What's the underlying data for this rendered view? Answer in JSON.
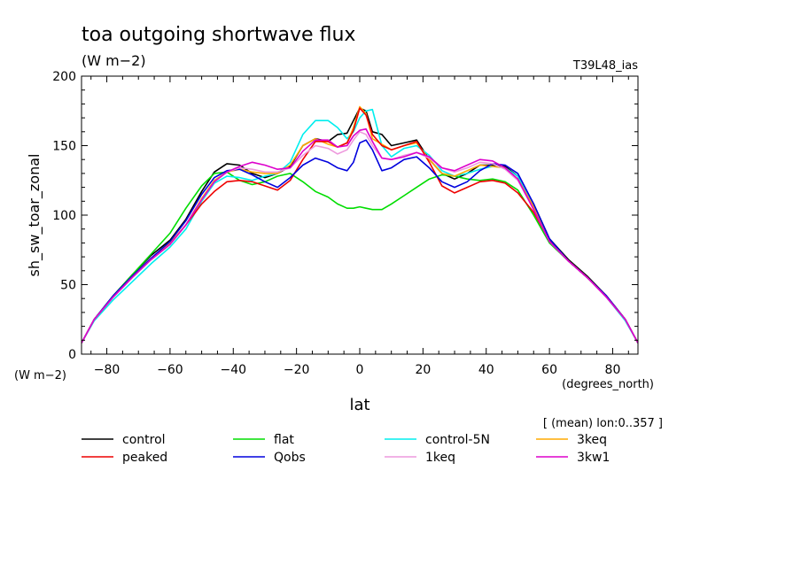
{
  "chart_data": {
    "type": "line",
    "title": "toa outgoing shortwave flux",
    "subtitle": "(W m−2)",
    "experiment_tag": "T39L48_ias",
    "ylabel": "sh_sw_toar_zonal",
    "yunit": "(W m−2)",
    "xlabel": "lat",
    "xunit": "(degrees_north)",
    "note": "[ (mean) lon:0..357 ]",
    "xlim": [
      -88,
      88
    ],
    "ylim": [
      0,
      200
    ],
    "xticks": [
      -80,
      -60,
      -40,
      -20,
      0,
      20,
      40,
      60,
      80
    ],
    "xtick_labels": [
      "−80",
      "−60",
      "−40",
      "−20",
      "0",
      "20",
      "40",
      "60",
      "80"
    ],
    "yticks": [
      0,
      50,
      100,
      150,
      200
    ],
    "ytick_labels": [
      "0",
      "50",
      "100",
      "150",
      "200"
    ],
    "grid": false,
    "legend_position": "bottom",
    "series": [
      {
        "name": "control",
        "color": "#000000",
        "x": [
          -88,
          -84,
          -78,
          -72,
          -66,
          -60,
          -55,
          -50,
          -46,
          -42,
          -38,
          -34,
          -30,
          -26,
          -22,
          -18,
          -14,
          -10,
          -7,
          -4,
          -2,
          0,
          2,
          4,
          7,
          10,
          14,
          18,
          22,
          26,
          30,
          34,
          38,
          42,
          46,
          50,
          55,
          60,
          66,
          72,
          78,
          84,
          88
        ],
        "y": [
          8,
          25,
          42,
          57,
          71,
          82,
          97,
          117,
          131,
          137,
          136,
          130,
          127,
          130,
          135,
          150,
          155,
          153,
          158,
          159,
          168,
          177,
          175,
          160,
          158,
          150,
          152,
          154,
          140,
          130,
          126,
          130,
          136,
          136,
          135,
          128,
          108,
          83,
          68,
          56,
          42,
          25,
          8
        ]
      },
      {
        "name": "flat",
        "color": "#00dd00",
        "x": [
          -88,
          -84,
          -78,
          -72,
          -66,
          -60,
          -55,
          -50,
          -46,
          -42,
          -38,
          -34,
          -30,
          -26,
          -22,
          -18,
          -14,
          -10,
          -7,
          -4,
          -2,
          0,
          2,
          4,
          7,
          10,
          14,
          18,
          22,
          26,
          30,
          34,
          38,
          42,
          46,
          50,
          55,
          60,
          66,
          72,
          78,
          84,
          88
        ],
        "y": [
          8,
          25,
          42,
          57,
          72,
          87,
          105,
          121,
          130,
          131,
          125,
          122,
          124,
          128,
          130,
          124,
          117,
          113,
          108,
          105,
          105,
          106,
          105,
          104,
          104,
          108,
          114,
          120,
          126,
          129,
          128,
          126,
          125,
          126,
          124,
          118,
          100,
          80,
          67,
          55,
          42,
          25,
          8
        ]
      },
      {
        "name": "control-5N",
        "color": "#00eeee",
        "x": [
          -88,
          -84,
          -78,
          -72,
          -66,
          -60,
          -55,
          -50,
          -46,
          -42,
          -38,
          -34,
          -30,
          -26,
          -22,
          -18,
          -14,
          -10,
          -7,
          -4,
          -2,
          0,
          2,
          4,
          7,
          10,
          14,
          18,
          22,
          26,
          30,
          34,
          38,
          42,
          46,
          50,
          55,
          60,
          66,
          72,
          78,
          84,
          88
        ],
        "y": [
          8,
          24,
          39,
          52,
          65,
          77,
          90,
          110,
          123,
          128,
          127,
          125,
          128,
          130,
          138,
          158,
          168,
          168,
          163,
          155,
          160,
          170,
          175,
          176,
          150,
          142,
          148,
          150,
          143,
          132,
          128,
          130,
          133,
          135,
          134,
          128,
          108,
          82,
          67,
          55,
          41,
          24,
          8
        ]
      },
      {
        "name": "3keq",
        "color": "#ffaa00",
        "x": [
          -88,
          -84,
          -78,
          -72,
          -66,
          -60,
          -55,
          -50,
          -46,
          -42,
          -38,
          -34,
          -30,
          -26,
          -22,
          -18,
          -14,
          -10,
          -7,
          -4,
          -2,
          0,
          2,
          4,
          7,
          10,
          14,
          18,
          22,
          26,
          30,
          34,
          38,
          42,
          46,
          50,
          55,
          60,
          66,
          72,
          78,
          84,
          88
        ],
        "y": [
          8,
          25,
          41,
          56,
          69,
          80,
          93,
          112,
          125,
          131,
          133,
          131,
          130,
          130,
          136,
          150,
          155,
          151,
          149,
          152,
          163,
          178,
          173,
          155,
          151,
          147,
          150,
          152,
          140,
          130,
          128,
          132,
          136,
          135,
          134,
          126,
          106,
          82,
          67,
          55,
          41,
          25,
          8
        ]
      },
      {
        "name": "peaked",
        "color": "#ee0000",
        "x": [
          -88,
          -84,
          -78,
          -72,
          -66,
          -60,
          -55,
          -50,
          -46,
          -42,
          -38,
          -34,
          -30,
          -26,
          -22,
          -18,
          -14,
          -10,
          -7,
          -4,
          -2,
          0,
          2,
          4,
          7,
          10,
          14,
          18,
          22,
          26,
          30,
          34,
          38,
          42,
          46,
          50,
          55,
          60,
          66,
          72,
          78,
          84,
          88
        ],
        "y": [
          8,
          25,
          41,
          55,
          68,
          79,
          93,
          108,
          117,
          124,
          125,
          124,
          121,
          118,
          125,
          140,
          153,
          153,
          149,
          152,
          161,
          177,
          172,
          158,
          150,
          147,
          150,
          153,
          138,
          121,
          116,
          120,
          124,
          125,
          123,
          116,
          102,
          82,
          67,
          55,
          42,
          25,
          8
        ]
      },
      {
        "name": "Qobs",
        "color": "#0000dd",
        "x": [
          -88,
          -84,
          -78,
          -72,
          -66,
          -60,
          -55,
          -50,
          -46,
          -42,
          -38,
          -34,
          -30,
          -26,
          -22,
          -18,
          -14,
          -10,
          -7,
          -4,
          -2,
          0,
          2,
          4,
          7,
          10,
          14,
          18,
          22,
          26,
          30,
          34,
          38,
          42,
          46,
          50,
          55,
          60,
          66,
          72,
          78,
          84,
          88
        ],
        "y": [
          8,
          25,
          42,
          56,
          69,
          81,
          96,
          115,
          127,
          132,
          133,
          129,
          124,
          120,
          127,
          136,
          141,
          138,
          134,
          132,
          138,
          152,
          154,
          147,
          132,
          134,
          140,
          142,
          134,
          124,
          120,
          124,
          132,
          137,
          136,
          130,
          108,
          83,
          67,
          55,
          42,
          25,
          8
        ]
      },
      {
        "name": "1keq",
        "color": "#ee99dd",
        "x": [
          -88,
          -84,
          -78,
          -72,
          -66,
          -60,
          -55,
          -50,
          -46,
          -42,
          -38,
          -34,
          -30,
          -26,
          -22,
          -18,
          -14,
          -10,
          -7,
          -4,
          -2,
          0,
          2,
          4,
          7,
          10,
          14,
          18,
          22,
          26,
          30,
          34,
          38,
          42,
          46,
          50,
          55,
          60,
          66,
          72,
          78,
          84,
          88
        ],
        "y": [
          8,
          25,
          41,
          55,
          68,
          79,
          93,
          111,
          124,
          131,
          134,
          133,
          131,
          131,
          134,
          143,
          150,
          148,
          144,
          147,
          154,
          160,
          158,
          150,
          141,
          140,
          143,
          145,
          141,
          134,
          131,
          134,
          138,
          137,
          133,
          125,
          104,
          81,
          67,
          55,
          41,
          25,
          8
        ]
      },
      {
        "name": "3kw1",
        "color": "#dd00cc",
        "x": [
          -88,
          -84,
          -78,
          -72,
          -66,
          -60,
          -55,
          -50,
          -46,
          -42,
          -38,
          -34,
          -30,
          -26,
          -22,
          -18,
          -14,
          -10,
          -7,
          -4,
          -2,
          0,
          2,
          4,
          7,
          10,
          14,
          18,
          22,
          26,
          30,
          34,
          38,
          42,
          46,
          50,
          55,
          60,
          66,
          72,
          78,
          84,
          88
        ],
        "y": [
          8,
          25,
          41,
          55,
          68,
          79,
          93,
          111,
          124,
          131,
          135,
          138,
          136,
          133,
          134,
          146,
          154,
          154,
          149,
          150,
          157,
          161,
          162,
          153,
          141,
          140,
          142,
          145,
          142,
          134,
          132,
          136,
          140,
          139,
          134,
          126,
          104,
          81,
          67,
          55,
          41,
          25,
          8
        ]
      }
    ],
    "legend_layout": [
      [
        "control",
        "flat",
        "control-5N",
        "3keq"
      ],
      [
        "peaked",
        "Qobs",
        "1keq",
        "3kw1"
      ]
    ]
  }
}
